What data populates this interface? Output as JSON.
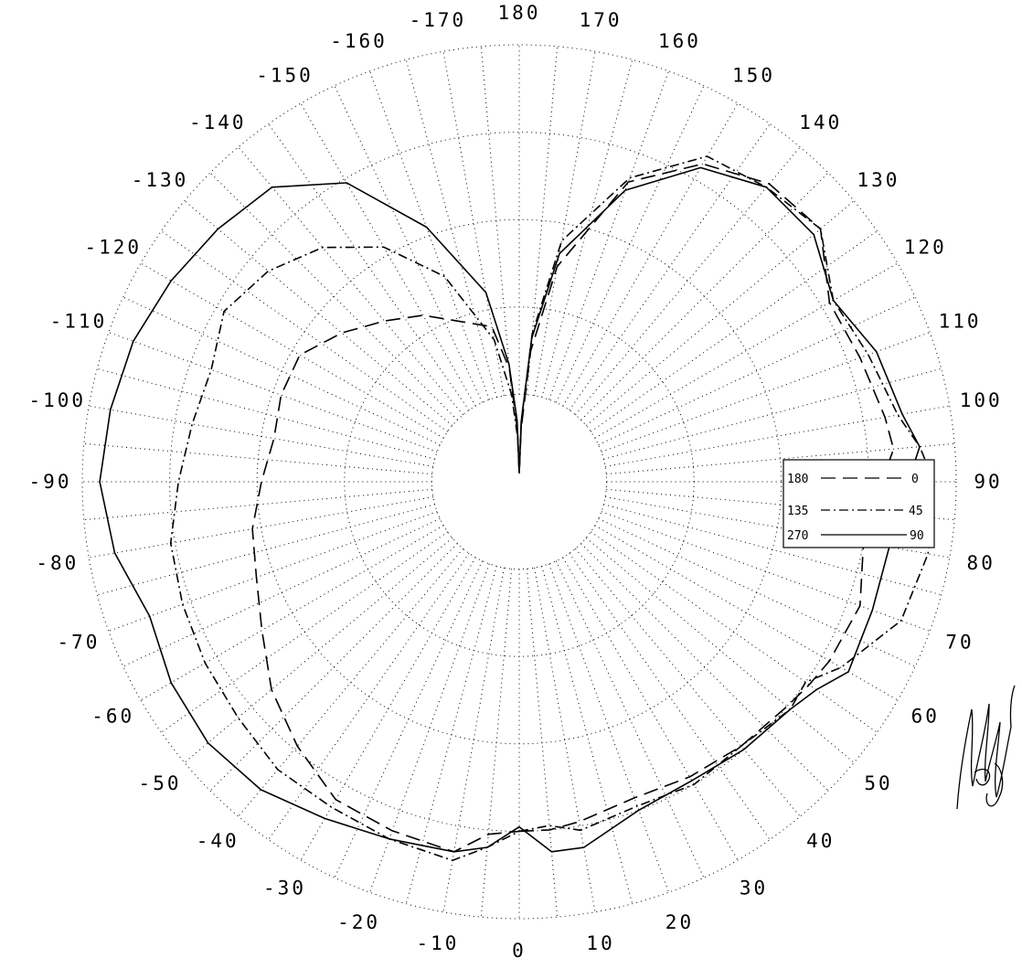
{
  "chart_data": {
    "type": "polar-line",
    "title": "",
    "angular_unit": "degrees",
    "angle_zero_direction": "bottom",
    "angle_positive_direction": "counterclockwise",
    "angle_ticks": [
      0,
      10,
      20,
      30,
      40,
      50,
      60,
      70,
      80,
      90,
      100,
      110,
      120,
      130,
      140,
      150,
      160,
      170,
      180,
      -170,
      -160,
      -150,
      -140,
      -130,
      -120,
      -110,
      -100,
      -90,
      -80,
      -70,
      -60,
      -50,
      -40,
      -30,
      -20,
      -10
    ],
    "tick_labels": [
      "0",
      "10",
      "20",
      "30",
      "40",
      "50",
      "60",
      "70",
      "80",
      "90",
      "100",
      "110",
      "120",
      "130",
      "140",
      "150",
      "160",
      "170",
      "180",
      "-170",
      "-160",
      "-150",
      "-140",
      "-130",
      "-120",
      "-110",
      "-100",
      "-90",
      "-80",
      "-70",
      "-60",
      "-50",
      "-40",
      "-30",
      "-20",
      "-10"
    ],
    "radial_scale": "relative, no labels",
    "radial_max": 1.0,
    "radial_grid": [
      0.2,
      0.4,
      0.6,
      0.8,
      1.0
    ],
    "grid": "dotted",
    "legend": {
      "placement": "right",
      "entries": [
        {
          "left": "180",
          "right": "0",
          "style": "dashed"
        },
        {
          "left": "135",
          "right": "45",
          "style": "dash-dot"
        },
        {
          "left": "270",
          "right": "90",
          "style": "solid"
        }
      ]
    },
    "series": [
      {
        "style": "dashed",
        "angles": [
          0,
          5,
          10,
          20,
          30,
          40,
          50,
          55,
          60,
          70,
          80,
          90,
          95,
          100,
          110,
          120,
          130,
          140,
          150,
          160,
          170,
          175,
          178,
          180,
          -178,
          -175,
          -170,
          -160,
          -150,
          -140,
          -130,
          -120,
          -110,
          -100,
          -90,
          -80,
          -70,
          -60,
          -50,
          -40,
          -30,
          -20,
          -10,
          -5
        ],
        "r": [
          0.8,
          0.8,
          0.79,
          0.77,
          0.78,
          0.79,
          0.8,
          0.81,
          0.82,
          0.83,
          0.8,
          0.83,
          0.86,
          0.85,
          0.83,
          0.82,
          0.9,
          0.89,
          0.84,
          0.73,
          0.5,
          0.3,
          0.12,
          0.02,
          0.12,
          0.26,
          0.36,
          0.39,
          0.44,
          0.48,
          0.53,
          0.58,
          0.58,
          0.57,
          0.59,
          0.62,
          0.64,
          0.68,
          0.74,
          0.79,
          0.84,
          0.85,
          0.86,
          0.81
        ]
      },
      {
        "style": "dash-dot",
        "angles": [
          0,
          5,
          10,
          20,
          30,
          40,
          50,
          55,
          60,
          70,
          80,
          90,
          95,
          100,
          110,
          120,
          130,
          140,
          150,
          160,
          170,
          175,
          178,
          180,
          -178,
          -175,
          -170,
          -160,
          -150,
          -140,
          -130,
          -120,
          -110,
          -100,
          -90,
          -80,
          -70,
          -60,
          -50,
          -40,
          -30,
          -20,
          -10,
          -5
        ],
        "r": [
          0.8,
          0.79,
          0.81,
          0.79,
          0.8,
          0.79,
          0.81,
          0.8,
          0.85,
          0.93,
          0.95,
          0.95,
          0.92,
          0.88,
          0.85,
          0.83,
          0.9,
          0.88,
          0.86,
          0.74,
          0.56,
          0.34,
          0.14,
          0.02,
          0.1,
          0.2,
          0.33,
          0.5,
          0.62,
          0.7,
          0.75,
          0.78,
          0.75,
          0.76,
          0.78,
          0.81,
          0.82,
          0.83,
          0.84,
          0.86,
          0.86,
          0.87,
          0.88,
          0.84
        ]
      },
      {
        "style": "solid",
        "angles": [
          0,
          5,
          10,
          20,
          30,
          40,
          50,
          55,
          60,
          70,
          80,
          90,
          95,
          100,
          110,
          120,
          130,
          140,
          150,
          160,
          170,
          175,
          178,
          180,
          -178,
          -175,
          -170,
          -160,
          -150,
          -140,
          -130,
          -120,
          -110,
          -100,
          -90,
          -80,
          -70,
          -60,
          -50,
          -40,
          -30,
          -20,
          -10,
          -5
        ],
        "r": [
          0.79,
          0.85,
          0.85,
          0.8,
          0.79,
          0.8,
          0.81,
          0.83,
          0.87,
          0.86,
          0.86,
          0.89,
          0.92,
          0.89,
          0.87,
          0.83,
          0.88,
          0.88,
          0.83,
          0.71,
          0.53,
          0.33,
          0.14,
          0.02,
          0.14,
          0.27,
          0.44,
          0.62,
          0.79,
          0.88,
          0.9,
          0.92,
          0.94,
          0.95,
          0.96,
          0.94,
          0.9,
          0.92,
          0.93,
          0.92,
          0.89,
          0.87,
          0.86,
          0.84
        ]
      }
    ]
  }
}
